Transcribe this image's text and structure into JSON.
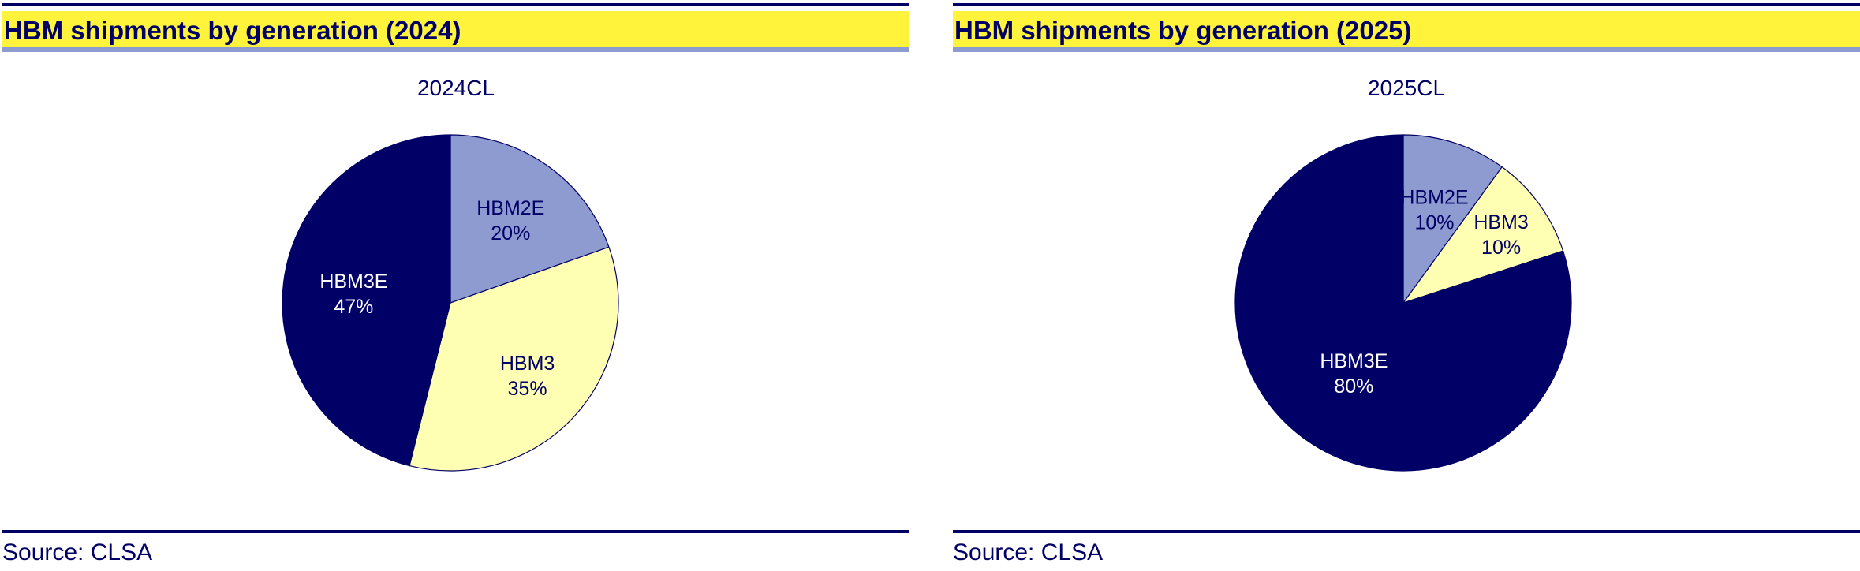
{
  "panels": [
    {
      "title": "HBM shipments by generation (2024)",
      "source": "Source: CLSA"
    },
    {
      "title": "HBM shipments by generation (2025)",
      "source": "Source: CLSA"
    }
  ],
  "colors": {
    "title_band": "#fff33b",
    "title_underline": "#8e9bd1",
    "rule": "#000066",
    "text": "#000066"
  },
  "chart_data": [
    {
      "type": "pie",
      "title": "2024CL",
      "start": "12 o'clock",
      "direction": "clockwise",
      "slices": [
        {
          "label": "HBM2E",
          "value": 20,
          "value_label": "20%",
          "color": "#8e9bd1",
          "label_color": "#000066"
        },
        {
          "label": "HBM3",
          "value": 35,
          "value_label": "35%",
          "color": "#ffffb3",
          "label_color": "#000066"
        },
        {
          "label": "HBM3E",
          "value": 47,
          "value_label": "47%",
          "color": "#000066",
          "label_color": "#ffffff"
        }
      ]
    },
    {
      "type": "pie",
      "title": "2025CL",
      "start": "12 o'clock",
      "direction": "clockwise",
      "slices": [
        {
          "label": "HBM2E",
          "value": 10,
          "value_label": "10%",
          "color": "#8e9bd1",
          "label_color": "#000066"
        },
        {
          "label": "HBM3",
          "value": 10,
          "value_label": "10%",
          "color": "#ffffb3",
          "label_color": "#000066"
        },
        {
          "label": "HBM3E",
          "value": 80,
          "value_label": "80%",
          "color": "#000066",
          "label_color": "#ffffff"
        }
      ]
    }
  ]
}
